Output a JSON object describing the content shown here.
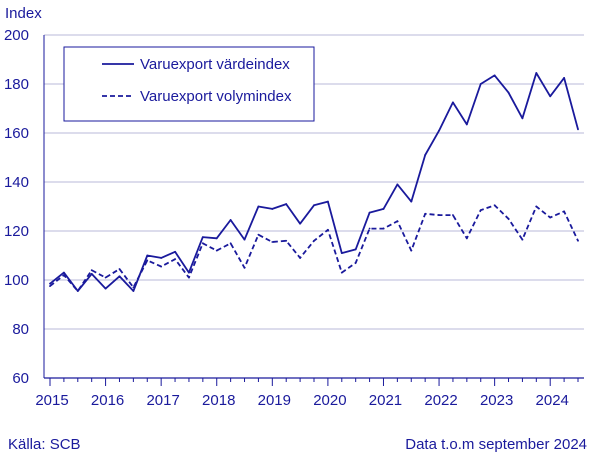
{
  "chart_data": {
    "type": "line",
    "ylabel": "Index",
    "ylim": [
      60,
      200
    ],
    "yticks": [
      60,
      80,
      100,
      120,
      140,
      160,
      180,
      200
    ],
    "xticks": [
      "2015",
      "2016",
      "2017",
      "2018",
      "2019",
      "2020",
      "2021",
      "2022",
      "2023",
      "2024"
    ],
    "grid": true,
    "legend_position": "top-left",
    "x": [
      "2015Q1",
      "2015Q2",
      "2015Q3",
      "2015Q4",
      "2016Q1",
      "2016Q2",
      "2016Q3",
      "2016Q4",
      "2017Q1",
      "2017Q2",
      "2017Q3",
      "2017Q4",
      "2018Q1",
      "2018Q2",
      "2018Q3",
      "2018Q4",
      "2019Q1",
      "2019Q2",
      "2019Q3",
      "2019Q4",
      "2020Q1",
      "2020Q2",
      "2020Q3",
      "2020Q4",
      "2021Q1",
      "2021Q2",
      "2021Q3",
      "2021Q4",
      "2022Q1",
      "2022Q2",
      "2022Q3",
      "2022Q4",
      "2023Q1",
      "2023Q2",
      "2023Q3",
      "2023Q4",
      "2024Q1",
      "2024Q2",
      "2024Q3"
    ],
    "series": [
      {
        "name": "Varuexport värdeindex",
        "style": "solid",
        "color": "#1a1a9c",
        "values": [
          98.5,
          103,
          95.5,
          102.5,
          96.5,
          101.5,
          95.5,
          110,
          109,
          111.5,
          103,
          117.5,
          117,
          124.5,
          116.5,
          130,
          129,
          131,
          123,
          130.5,
          132,
          111,
          112.5,
          127.5,
          129,
          139,
          132,
          151,
          161,
          172.5,
          163.5,
          180,
          183.5,
          176.5,
          166,
          184.5,
          175,
          182.5,
          161.5
        ]
      },
      {
        "name": "Varuexport volymindex",
        "style": "dashed",
        "color": "#1a1a9c",
        "values": [
          97.5,
          102,
          95.5,
          104,
          101,
          104.5,
          97,
          108,
          105.5,
          108.5,
          101,
          115,
          112,
          115,
          105,
          118.5,
          115.5,
          116,
          109,
          116,
          120.5,
          103,
          107,
          121,
          121,
          124,
          112,
          127,
          126.5,
          126.5,
          117,
          128.5,
          130.5,
          125,
          116.5,
          130,
          125.5,
          128,
          116
        ]
      }
    ]
  },
  "footer": {
    "source": "Källa: SCB",
    "note": "Data t.o.m september 2024"
  }
}
